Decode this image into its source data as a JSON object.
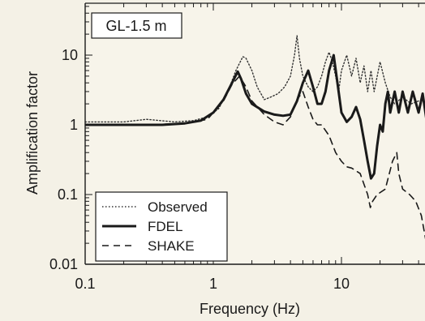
{
  "chart_data": {
    "type": "line",
    "title": "GL-1.5 m",
    "xlabel": "Frequency (Hz)",
    "ylabel": "Amplification factor",
    "xscale": "log",
    "yscale": "log",
    "xlim": [
      0.1,
      50
    ],
    "ylim": [
      0.01,
      50
    ],
    "grid": false,
    "legend_position": "bottom-left",
    "x_tick_labels": [
      {
        "value": 0.1,
        "label": "0.1"
      },
      {
        "value": 1,
        "label": "1"
      },
      {
        "value": 10,
        "label": "10"
      }
    ],
    "y_tick_labels": [
      {
        "value": 0.01,
        "label": "0.01"
      },
      {
        "value": 0.1,
        "label": "0.1"
      },
      {
        "value": 1,
        "label": "1"
      },
      {
        "value": 10,
        "label": "10"
      }
    ],
    "series": [
      {
        "name": "Observed",
        "style": "dotted",
        "color": "#333333",
        "points": [
          [
            0.1,
            1.1
          ],
          [
            0.15,
            1.1
          ],
          [
            0.2,
            1.1
          ],
          [
            0.3,
            1.2
          ],
          [
            0.5,
            1.1
          ],
          [
            0.7,
            1.15
          ],
          [
            0.9,
            1.3
          ],
          [
            1.1,
            1.7
          ],
          [
            1.3,
            3
          ],
          [
            1.5,
            6
          ],
          [
            1.7,
            9.5
          ],
          [
            1.8,
            9
          ],
          [
            2,
            6
          ],
          [
            2.2,
            3.5
          ],
          [
            2.5,
            2.3
          ],
          [
            2.8,
            2.5
          ],
          [
            3.2,
            2.8
          ],
          [
            3.6,
            3.5
          ],
          [
            4,
            5
          ],
          [
            4.3,
            10
          ],
          [
            4.5,
            19
          ],
          [
            4.7,
            9
          ],
          [
            5,
            5
          ],
          [
            5.5,
            3.5
          ],
          [
            6,
            3
          ],
          [
            6.5,
            3.5
          ],
          [
            7,
            5
          ],
          [
            7.5,
            8
          ],
          [
            8,
            11
          ],
          [
            8.5,
            8
          ],
          [
            9,
            5
          ],
          [
            9.5,
            3
          ],
          [
            10,
            6
          ],
          [
            11,
            10
          ],
          [
            12,
            5
          ],
          [
            13,
            9
          ],
          [
            14,
            4
          ],
          [
            15,
            7
          ],
          [
            16,
            3
          ],
          [
            17,
            6
          ],
          [
            18,
            3
          ],
          [
            20,
            8
          ],
          [
            22,
            4
          ],
          [
            24,
            2.5
          ],
          [
            26,
            2
          ],
          [
            30,
            2.5
          ],
          [
            35,
            2
          ],
          [
            40,
            2.2
          ],
          [
            50,
            2
          ]
        ]
      },
      {
        "name": "FDEL",
        "style": "solid",
        "color": "#1a1a1a",
        "points": [
          [
            0.1,
            1
          ],
          [
            0.2,
            1
          ],
          [
            0.4,
            1
          ],
          [
            0.6,
            1.05
          ],
          [
            0.8,
            1.15
          ],
          [
            1,
            1.5
          ],
          [
            1.2,
            2.3
          ],
          [
            1.4,
            4
          ],
          [
            1.55,
            5.8
          ],
          [
            1.65,
            4.5
          ],
          [
            1.8,
            2.8
          ],
          [
            2,
            2
          ],
          [
            2.5,
            1.55
          ],
          [
            3,
            1.4
          ],
          [
            3.5,
            1.35
          ],
          [
            4,
            1.4
          ],
          [
            4.5,
            2.2
          ],
          [
            5,
            4
          ],
          [
            5.5,
            6
          ],
          [
            6,
            3.5
          ],
          [
            6.5,
            2
          ],
          [
            7,
            2
          ],
          [
            7.5,
            3
          ],
          [
            8,
            6
          ],
          [
            8.7,
            10
          ],
          [
            9.5,
            3
          ],
          [
            10,
            1.5
          ],
          [
            11,
            1.1
          ],
          [
            12,
            1.3
          ],
          [
            13,
            1.8
          ],
          [
            14,
            1.2
          ],
          [
            15,
            0.6
          ],
          [
            16,
            0.3
          ],
          [
            17,
            0.17
          ],
          [
            18,
            0.2
          ],
          [
            19,
            0.5
          ],
          [
            20,
            1
          ],
          [
            21,
            0.8
          ],
          [
            22,
            2
          ],
          [
            23,
            3
          ],
          [
            24,
            1.5
          ],
          [
            26,
            3
          ],
          [
            28,
            1.5
          ],
          [
            30,
            3
          ],
          [
            33,
            1.5
          ],
          [
            36,
            3
          ],
          [
            40,
            1.5
          ],
          [
            43,
            2.8
          ],
          [
            46,
            1.2
          ],
          [
            50,
            2.5
          ]
        ]
      },
      {
        "name": "SHAKE",
        "style": "dashed",
        "color": "#1a1a1a",
        "points": [
          [
            0.1,
            1
          ],
          [
            0.3,
            1
          ],
          [
            0.6,
            1.05
          ],
          [
            0.9,
            1.2
          ],
          [
            1.2,
            2.2
          ],
          [
            1.4,
            3.8
          ],
          [
            1.6,
            5
          ],
          [
            1.8,
            3.5
          ],
          [
            2,
            2.2
          ],
          [
            2.5,
            1.4
          ],
          [
            3,
            1.1
          ],
          [
            3.5,
            1
          ],
          [
            4,
            1.3
          ],
          [
            4.5,
            2.3
          ],
          [
            5,
            3
          ],
          [
            5.5,
            1.8
          ],
          [
            6,
            1.2
          ],
          [
            6.5,
            1
          ],
          [
            7,
            1
          ],
          [
            8,
            0.7
          ],
          [
            9,
            0.4
          ],
          [
            10,
            0.3
          ],
          [
            11,
            0.25
          ],
          [
            12,
            0.24
          ],
          [
            14,
            0.2
          ],
          [
            16,
            0.1
          ],
          [
            16.8,
            0.065
          ],
          [
            17.5,
            0.08
          ],
          [
            19,
            0.1
          ],
          [
            22,
            0.12
          ],
          [
            25,
            0.3
          ],
          [
            27,
            0.4
          ],
          [
            28,
            0.2
          ],
          [
            30,
            0.12
          ],
          [
            34,
            0.1
          ],
          [
            38,
            0.08
          ],
          [
            42,
            0.05
          ],
          [
            46,
            0.02
          ],
          [
            50,
            0.012
          ]
        ]
      }
    ]
  }
}
